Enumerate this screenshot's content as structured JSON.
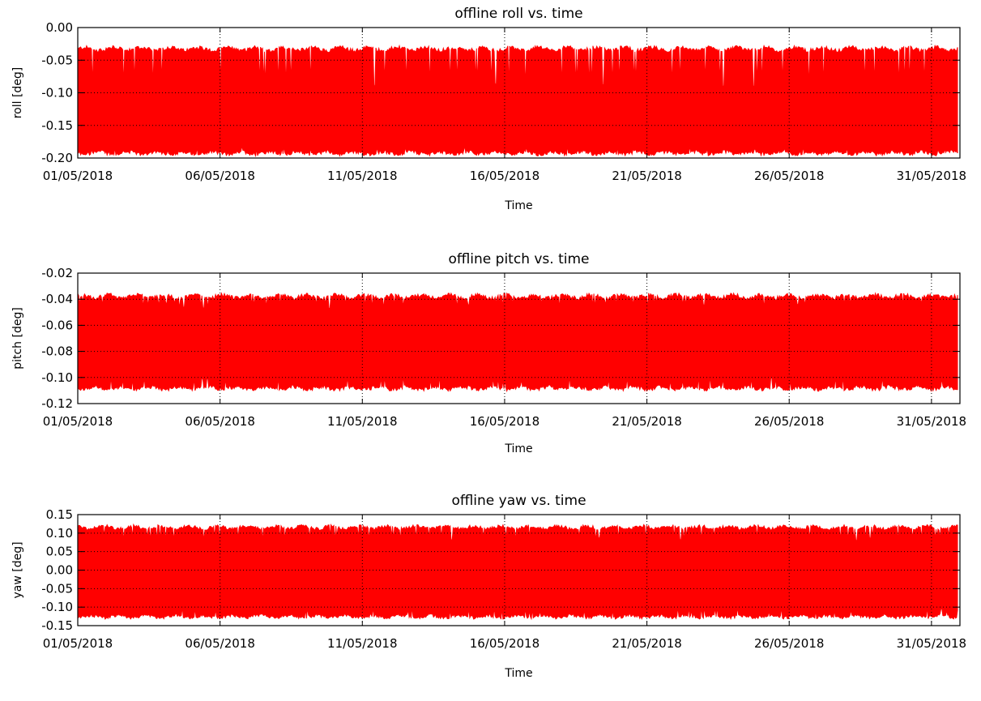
{
  "chart_data": [
    {
      "type": "area",
      "title": "offline roll vs. time",
      "xlabel": "Time",
      "ylabel": "roll [deg]",
      "xlim": [
        "01/05/2018",
        "01/06/2018"
      ],
      "ylim": [
        -0.2,
        0.0
      ],
      "x_ticks": [
        "01/05/2018",
        "06/05/2018",
        "11/05/2018",
        "16/05/2018",
        "21/05/2018",
        "26/05/2018",
        "31/05/2018"
      ],
      "y_ticks": [
        "0.00",
        "-0.05",
        "-0.10",
        "-0.15",
        "-0.20"
      ],
      "grid": true,
      "series": [
        {
          "color": "#ff0000",
          "values_description": "dense oscillation",
          "upper_level": -0.033,
          "lower_level": -0.192,
          "inner_upper": -0.09,
          "inner_lower": -0.185
        }
      ]
    },
    {
      "type": "area",
      "title": "offline pitch vs. time",
      "xlabel": "Time",
      "ylabel": "pitch [deg]",
      "xlim": [
        "01/05/2018",
        "01/06/2018"
      ],
      "ylim": [
        -0.12,
        -0.02
      ],
      "x_ticks": [
        "01/05/2018",
        "06/05/2018",
        "11/05/2018",
        "16/05/2018",
        "21/05/2018",
        "26/05/2018",
        "31/05/2018"
      ],
      "y_ticks": [
        "-0.02",
        "-0.04",
        "-0.06",
        "-0.08",
        "-0.10",
        "-0.12"
      ],
      "grid": true,
      "series": [
        {
          "color": "#ff0000",
          "upper_level": -0.038,
          "lower_level": -0.108,
          "inner_upper": -0.045,
          "inner_lower": -0.1
        }
      ]
    },
    {
      "type": "area",
      "title": "offline yaw vs. time",
      "xlabel": "Time",
      "ylabel": "yaw [deg]",
      "xlim": [
        "01/05/2018",
        "01/06/2018"
      ],
      "ylim": [
        -0.15,
        0.15
      ],
      "x_ticks": [
        "01/05/2018",
        "06/05/2018",
        "11/05/2018",
        "16/05/2018",
        "21/05/2018",
        "26/05/2018",
        "31/05/2018"
      ],
      "y_ticks": [
        "0.15",
        "0.10",
        "0.05",
        "0.00",
        "-0.05",
        "-0.10",
        "-0.15"
      ],
      "grid": true,
      "series": [
        {
          "color": "#ff0000",
          "upper_level": 0.115,
          "lower_level": -0.125,
          "inner_upper": 0.085,
          "inner_lower": -0.105
        }
      ]
    }
  ]
}
